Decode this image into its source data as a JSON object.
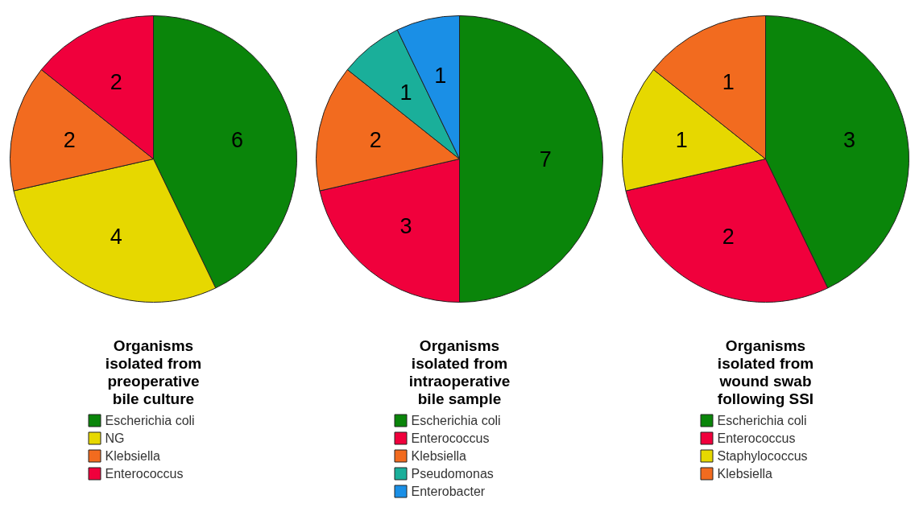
{
  "chart_data": [
    {
      "type": "pie",
      "title": "Organisms isolated from preoperative bile culture",
      "categories": [
        "Escherichia coli",
        "NG",
        "Klebsiella",
        "Enterococcus"
      ],
      "values": [
        6,
        4,
        2,
        2
      ],
      "colors": [
        "#0a850a",
        "#e6d800",
        "#f26b1f",
        "#f0003c"
      ],
      "data_labels": true,
      "legend": "bottom"
    },
    {
      "type": "pie",
      "title": "Organisms isolated from intraoperative bile sample",
      "categories": [
        "Escherichia coli",
        "Enterococcus",
        "Klebsiella",
        "Pseudomonas",
        "Enterobacter"
      ],
      "values": [
        7,
        3,
        2,
        1,
        1
      ],
      "colors": [
        "#0a850a",
        "#f0003c",
        "#f26b1f",
        "#1aaf9a",
        "#1a8fe6"
      ],
      "data_labels": true,
      "legend": "bottom"
    },
    {
      "type": "pie",
      "title": "Organisms isolated from wound swab following SSI",
      "categories": [
        "Escherichia coli",
        "Enterococcus",
        "Staphylococcus",
        "Klebsiella"
      ],
      "values": [
        3,
        2,
        1,
        1
      ],
      "colors": [
        "#0a850a",
        "#f0003c",
        "#e6d800",
        "#f26b1f"
      ],
      "data_labels": true,
      "legend": "bottom"
    }
  ]
}
